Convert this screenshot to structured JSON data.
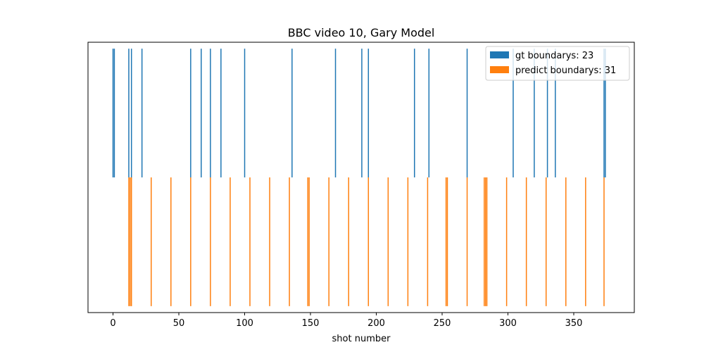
{
  "chart_data": {
    "type": "bar",
    "title": "BBC video 10, Gary Model",
    "xlabel": "shot number",
    "ylabel": "",
    "xlim": [
      -19,
      396
    ],
    "ylim": [
      -1.05,
      1.05
    ],
    "xticks": [
      0,
      50,
      100,
      150,
      200,
      250,
      300,
      350
    ],
    "yticks_visible": false,
    "grid": false,
    "legend_position": "top-right",
    "series": [
      {
        "name": "gt boundarys: 23",
        "color": "#1f77b4",
        "direction": "up",
        "value": 1,
        "x": [
          0,
          1,
          12,
          14,
          22,
          59,
          67,
          74,
          82,
          100,
          136,
          169,
          189,
          194,
          229,
          240,
          269,
          304,
          320,
          330,
          336,
          373,
          374
        ]
      },
      {
        "name": "predict boundarys: 31",
        "color": "#ff7f0e",
        "direction": "down",
        "value": 1,
        "x": [
          12,
          13,
          14,
          29,
          44,
          59,
          74,
          89,
          104,
          119,
          134,
          148,
          149,
          164,
          179,
          194,
          209,
          224,
          239,
          253,
          254,
          269,
          282,
          283,
          284,
          299,
          314,
          329,
          344,
          359,
          373
        ]
      }
    ]
  }
}
